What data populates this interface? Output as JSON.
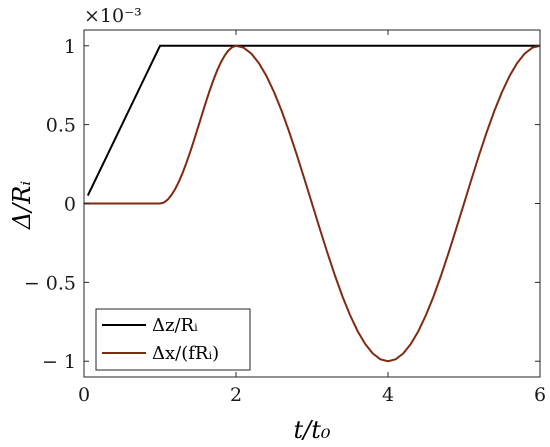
{
  "chart_data": {
    "type": "line",
    "title": "",
    "xlabel": "t/t₀",
    "ylabel": "Δ/Rᵢ",
    "xlim": [
      0,
      6
    ],
    "ylim": [
      -1.1,
      1.1
    ],
    "y_multiplier_label": "×10⁻³",
    "x_ticks": [
      0,
      2,
      4,
      6
    ],
    "x_tick_labels": [
      "0",
      "2",
      "4",
      "6"
    ],
    "y_ticks": [
      -1,
      -0.5,
      0,
      0.5,
      1
    ],
    "y_tick_labels": [
      "− 1",
      "− 0.5",
      "0",
      "0.5",
      "1"
    ],
    "grid": false,
    "legend_position": "bottom-left",
    "series": [
      {
        "name": "Δz/Rᵢ",
        "color": "#000000",
        "x": [
          0.05,
          1,
          6
        ],
        "y": [
          0.05,
          1,
          1
        ]
      },
      {
        "name": "Δx/(fRᵢ)",
        "color": "#7f2a12",
        "x": [
          0,
          1,
          1.05,
          1.1,
          1.15,
          1.2,
          1.25,
          1.3,
          1.35,
          1.4,
          1.45,
          1.5,
          1.55,
          1.6,
          1.65,
          1.7,
          1.75,
          1.8,
          1.85,
          1.9,
          1.95,
          2,
          2.1,
          2.2,
          2.3,
          2.4,
          2.5,
          2.6,
          2.7,
          2.8,
          2.9,
          3,
          3.1,
          3.2,
          3.3,
          3.4,
          3.5,
          3.6,
          3.7,
          3.8,
          3.9,
          4,
          4.1,
          4.2,
          4.3,
          4.4,
          4.5,
          4.6,
          4.7,
          4.8,
          4.9,
          5,
          5.1,
          5.2,
          5.3,
          5.4,
          5.5,
          5.6,
          5.7,
          5.8,
          5.9,
          6
        ],
        "y": [
          0,
          0,
          0.006,
          0.024,
          0.053,
          0.092,
          0.14,
          0.197,
          0.261,
          0.331,
          0.405,
          0.482,
          0.56,
          0.637,
          0.711,
          0.779,
          0.841,
          0.894,
          0.937,
          0.97,
          0.991,
          1,
          0.988,
          0.951,
          0.891,
          0.809,
          0.707,
          0.588,
          0.454,
          0.309,
          0.156,
          0,
          -0.156,
          -0.309,
          -0.454,
          -0.588,
          -0.707,
          -0.809,
          -0.891,
          -0.951,
          -0.988,
          -1,
          -0.988,
          -0.951,
          -0.891,
          -0.809,
          -0.707,
          -0.588,
          -0.454,
          -0.309,
          -0.156,
          0,
          0.156,
          0.309,
          0.454,
          0.588,
          0.707,
          0.809,
          0.891,
          0.951,
          0.988,
          1
        ]
      }
    ]
  }
}
